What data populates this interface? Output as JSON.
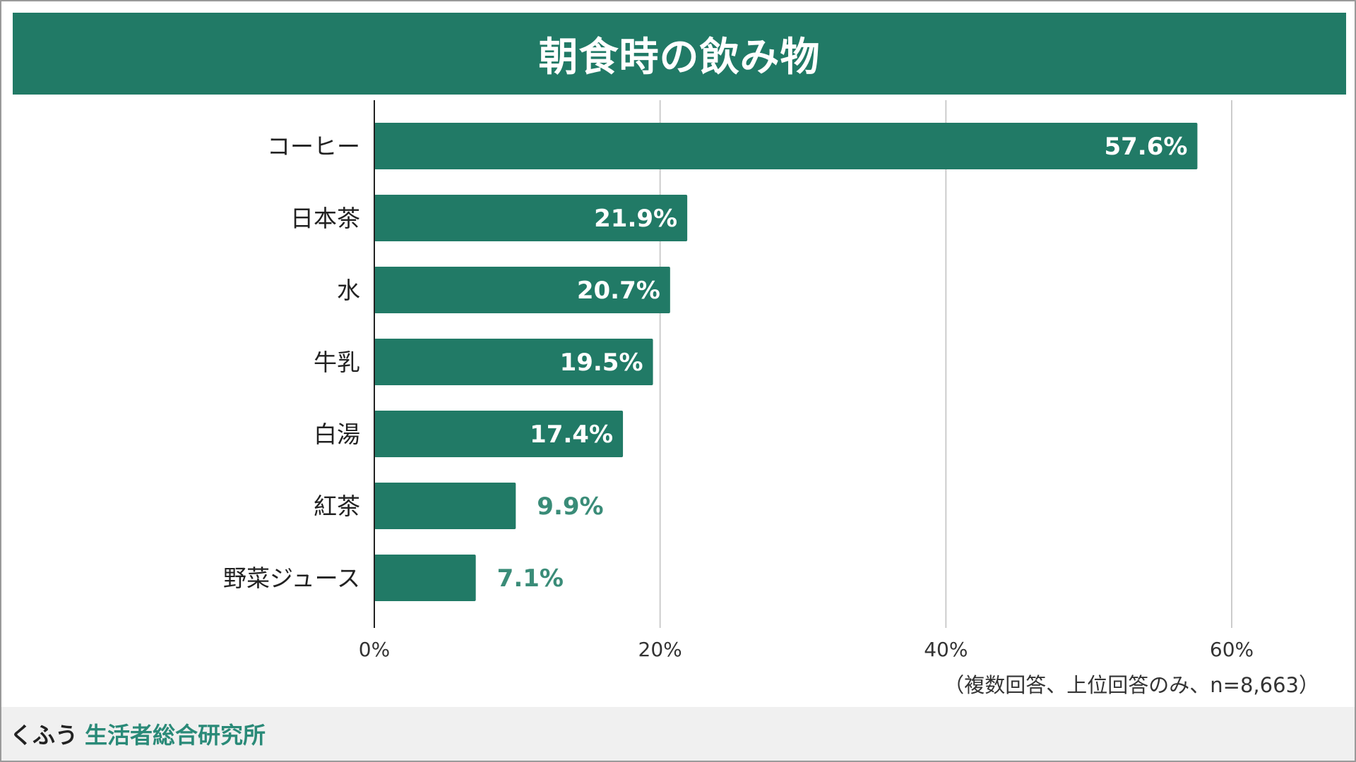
{
  "header": {
    "title": "朝食時の飲み物"
  },
  "note": "（複数回答、上位回答のみ、n=8,663）",
  "footer": {
    "logo_kana": "くふう",
    "logo_name": "生活者総合研究所"
  },
  "colors": {
    "bar": "#217a66",
    "label_inside": "#ffffff",
    "label_outside": "#3a8c78",
    "grid": "#cccccc",
    "axis": "#222222"
  },
  "chart_data": {
    "type": "bar",
    "orientation": "horizontal",
    "title": "朝食時の飲み物",
    "categories": [
      "コーヒー",
      "日本茶",
      "水",
      "牛乳",
      "白湯",
      "紅茶",
      "野菜ジュース"
    ],
    "values": [
      57.6,
      21.9,
      20.7,
      19.5,
      17.4,
      9.9,
      7.1
    ],
    "data_labels": [
      "57.6%",
      "21.9%",
      "20.7%",
      "19.5%",
      "17.4%",
      "9.9%",
      "7.1%"
    ],
    "xlim": [
      0,
      60
    ],
    "xticks": [
      0,
      20,
      40,
      60
    ],
    "xtick_labels": [
      "0%",
      "20%",
      "40%",
      "60%"
    ],
    "grid": true,
    "legend": "none"
  }
}
